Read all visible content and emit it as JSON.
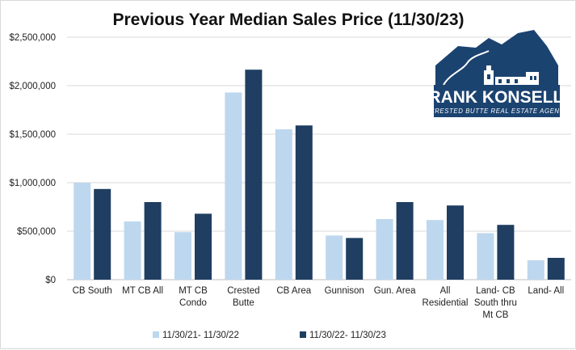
{
  "chart_data": {
    "type": "bar",
    "title": "Previous Year Median Sales Price (11/30/23)",
    "xlabel": "",
    "ylabel": "",
    "ylim": [
      0,
      2500000
    ],
    "yticks": [
      "$0",
      "$500,000",
      "$1,000,000",
      "$1,500,000",
      "$2,000,000",
      "$2,500,000"
    ],
    "grid": true,
    "legend_position": "bottom",
    "categories": [
      [
        "CB South"
      ],
      [
        "MT CB All"
      ],
      [
        "MT CB",
        "Condo"
      ],
      [
        "Crested",
        "Butte"
      ],
      [
        "CB Area"
      ],
      [
        "Gunnison"
      ],
      [
        "Gun. Area"
      ],
      [
        "All",
        "Residential"
      ],
      [
        "Land- CB",
        "South thru",
        "Mt CB"
      ],
      [
        "Land- All"
      ]
    ],
    "series": [
      {
        "name": "11/30/21- 11/30/22",
        "color": "#bdd7ee",
        "values": [
          1000000,
          600000,
          490000,
          1930000,
          1550000,
          455000,
          625000,
          615000,
          480000,
          200000
        ]
      },
      {
        "name": "11/30/22- 11/30/23",
        "color": "#1f3e61",
        "values": [
          935000,
          800000,
          680000,
          2165000,
          1590000,
          430000,
          800000,
          765000,
          565000,
          225000
        ]
      }
    ]
  },
  "logo": {
    "name": "FRANK KONSELLA",
    "tagline": "CRESTED BUTTE REAL ESTATE AGENT",
    "colors": {
      "mountain": "#1b4370",
      "sky": "#ffffff",
      "road": "#ffffff"
    }
  },
  "colors": {
    "gridline": "#d9d9d9",
    "axis": "#bfbfbf"
  }
}
